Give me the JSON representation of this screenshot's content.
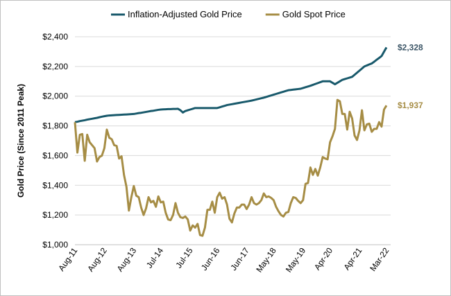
{
  "chart_data": {
    "type": "line",
    "y_label": "Gold Price (Since 2011 Peak)",
    "categories": [
      "Aug-11",
      null,
      null,
      null,
      null,
      null,
      null,
      null,
      null,
      null,
      null,
      null,
      "Aug-12",
      null,
      null,
      null,
      null,
      null,
      null,
      null,
      null,
      null,
      null,
      null,
      "Aug-13",
      null,
      null,
      null,
      null,
      null,
      null,
      null,
      null,
      null,
      null,
      "Jul-14",
      null,
      null,
      null,
      null,
      null,
      null,
      null,
      null,
      null,
      null,
      null,
      "Jul-15",
      null,
      null,
      null,
      null,
      null,
      null,
      null,
      null,
      null,
      null,
      "Jun-16",
      null,
      null,
      null,
      null,
      null,
      null,
      null,
      null,
      null,
      null,
      null,
      "Jun-17",
      null,
      null,
      null,
      null,
      null,
      null,
      null,
      null,
      null,
      null,
      "May-18",
      null,
      null,
      null,
      null,
      null,
      null,
      null,
      null,
      null,
      null,
      null,
      "May-19",
      null,
      null,
      null,
      null,
      null,
      null,
      null,
      null,
      null,
      null,
      "Apr-20",
      null,
      null,
      null,
      null,
      null,
      null,
      null,
      null,
      null,
      null,
      null,
      "Apr-21",
      null,
      null,
      null,
      null,
      null,
      null,
      null,
      null,
      null,
      null,
      "Mar-22"
    ],
    "series": [
      {
        "name": "Inflation-Adjusted Gold Price",
        "color": "#18596b",
        "values": [
          1825,
          1828,
          1832,
          1835,
          1838,
          1842,
          1845,
          1848,
          1851,
          1854,
          1858,
          1862,
          1865,
          1868,
          1870,
          1871,
          1872,
          1873,
          1874,
          1875,
          1876,
          1877,
          1878,
          1879,
          1880,
          1883,
          1886,
          1888,
          1891,
          1894,
          1897,
          1900,
          1902,
          1905,
          1908,
          1910,
          1911,
          1912,
          1913,
          1913,
          1914,
          1914,
          1915,
          1905,
          1890,
          1900,
          1905,
          1910,
          1915,
          1920,
          1920,
          1920,
          1920,
          1920,
          1920,
          1920,
          1920,
          1920,
          1920,
          1925,
          1930,
          1935,
          1940,
          1943,
          1946,
          1949,
          1952,
          1955,
          1958,
          1961,
          1964,
          1967,
          1970,
          1974,
          1978,
          1982,
          1986,
          1990,
          1995,
          2000,
          2005,
          2010,
          2015,
          2020,
          2025,
          2030,
          2035,
          2040,
          2042,
          2044,
          2046,
          2048,
          2050,
          2055,
          2060,
          2065,
          2070,
          2076,
          2082,
          2088,
          2094,
          2100,
          2100,
          2100,
          2100,
          2090,
          2080,
          2090,
          2100,
          2110,
          2115,
          2120,
          2125,
          2130,
          2144,
          2158,
          2172,
          2186,
          2200,
          2207,
          2214,
          2220,
          2232,
          2245,
          2257,
          2270,
          2299,
          2328
        ],
        "value_labels": {
          "127": "$2,328"
        }
      },
      {
        "name": "Gold Spot Price",
        "color": "#a68d45",
        "values": [
          1825,
          1620,
          1740,
          1745,
          1565,
          1740,
          1690,
          1670,
          1650,
          1560,
          1590,
          1600,
          1650,
          1775,
          1720,
          1710,
          1670,
          1665,
          1580,
          1595,
          1470,
          1390,
          1230,
          1320,
          1395,
          1330,
          1320,
          1250,
          1200,
          1245,
          1320,
          1285,
          1295,
          1255,
          1325,
          1285,
          1290,
          1215,
          1170,
          1165,
          1200,
          1280,
          1215,
          1185,
          1180,
          1190,
          1170,
          1095,
          1130,
          1115,
          1140,
          1065,
          1060,
          1115,
          1235,
          1235,
          1290,
          1215,
          1320,
          1350,
          1310,
          1320,
          1270,
          1175,
          1150,
          1210,
          1250,
          1250,
          1270,
          1270,
          1240,
          1270,
          1320,
          1280,
          1270,
          1280,
          1300,
          1345,
          1320,
          1325,
          1315,
          1300,
          1255,
          1225,
          1200,
          1190,
          1215,
          1220,
          1280,
          1320,
          1315,
          1295,
          1280,
          1300,
          1410,
          1415,
          1520,
          1470,
          1510,
          1465,
          1520,
          1590,
          1580,
          1575,
          1690,
          1730,
          1780,
          1975,
          1965,
          1880,
          1880,
          1775,
          1895,
          1850,
          1735,
          1705,
          1770,
          1905,
          1770,
          1810,
          1815,
          1760,
          1780,
          1780,
          1825,
          1795,
          1910,
          1937
        ],
        "value_labels": {
          "127": "$1,937"
        }
      }
    ],
    "ylim": [
      1000,
      2400
    ],
    "yticks": [
      {
        "value": 1000,
        "label": "$1,000"
      },
      {
        "value": 1200,
        "label": "$1,200"
      },
      {
        "value": 1400,
        "label": "$1,400"
      },
      {
        "value": 1600,
        "label": "$1,600"
      },
      {
        "value": 1800,
        "label": "$1,800"
      },
      {
        "value": 2000,
        "label": "$2,000"
      },
      {
        "value": 2200,
        "label": "$2,200"
      },
      {
        "value": 2400,
        "label": "$2,400"
      }
    ],
    "grid": true,
    "legend": "top"
  }
}
